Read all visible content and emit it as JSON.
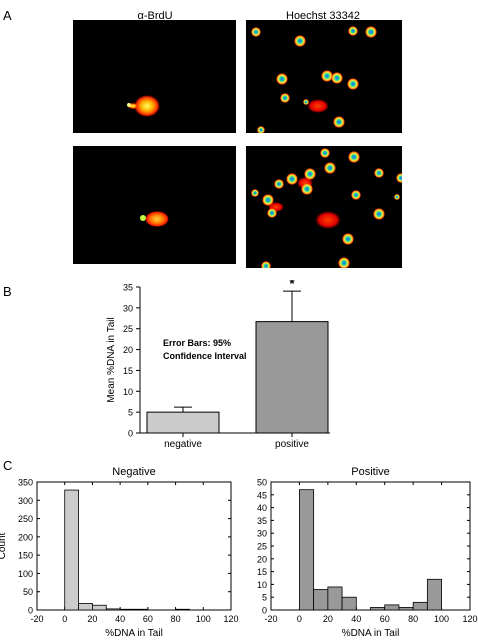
{
  "panel_a": {
    "letter": "A",
    "col1_title": "α-BrdU",
    "col2_title": "Hoechst 33342"
  },
  "panel_b": {
    "letter": "B"
  },
  "panel_c": {
    "letter": "C"
  },
  "colors": {
    "bar_negative": "#cccccc",
    "bar_positive": "#999999",
    "hist_negative": "#cccccc",
    "hist_positive": "#999999",
    "micro_bg": "#000000"
  },
  "chart_data": [
    {
      "id": "bar",
      "type": "bar",
      "categories": [
        "negative",
        "positive"
      ],
      "values": [
        5.0,
        26.7
      ],
      "error_upper": [
        6.2,
        34.0
      ],
      "ylabel": "Mean %DNA in Tail",
      "xlabel": "",
      "ylim": [
        0,
        35
      ],
      "yticks": [
        0,
        5,
        10,
        15,
        20,
        25,
        30,
        35
      ],
      "annotation": "Error Bars: 95%\nConfidence Interval",
      "significance": "*"
    },
    {
      "id": "hist_neg",
      "type": "bar",
      "title": "Negative",
      "xlabel": "%DNA in Tail",
      "ylabel": "Count",
      "bin_width": 10,
      "bins_start": [
        0,
        10,
        20,
        30,
        40,
        50,
        60,
        70,
        80,
        90
      ],
      "values": [
        328,
        18,
        13,
        3,
        2,
        2,
        0,
        0,
        2,
        0
      ],
      "xlim": [
        -20,
        120
      ],
      "ylim": [
        0,
        350
      ],
      "xticks": [
        -20,
        0,
        20,
        40,
        60,
        80,
        100,
        120
      ],
      "yticks": [
        0,
        50,
        100,
        150,
        200,
        250,
        300,
        350
      ]
    },
    {
      "id": "hist_pos",
      "type": "bar",
      "title": "Positive",
      "xlabel": "%DNA in Tail",
      "ylabel": "",
      "bin_width": 10,
      "bins_start": [
        0,
        10,
        20,
        30,
        40,
        50,
        60,
        70,
        80,
        90
      ],
      "values": [
        47,
        8,
        9,
        5,
        0,
        1,
        2,
        1,
        3,
        12
      ],
      "xlim": [
        -20,
        120
      ],
      "ylim": [
        0,
        50
      ],
      "xticks": [
        -20,
        0,
        20,
        40,
        60,
        80,
        100,
        120
      ],
      "yticks": [
        0,
        5,
        10,
        15,
        20,
        25,
        30,
        35,
        40,
        45,
        50
      ]
    }
  ]
}
